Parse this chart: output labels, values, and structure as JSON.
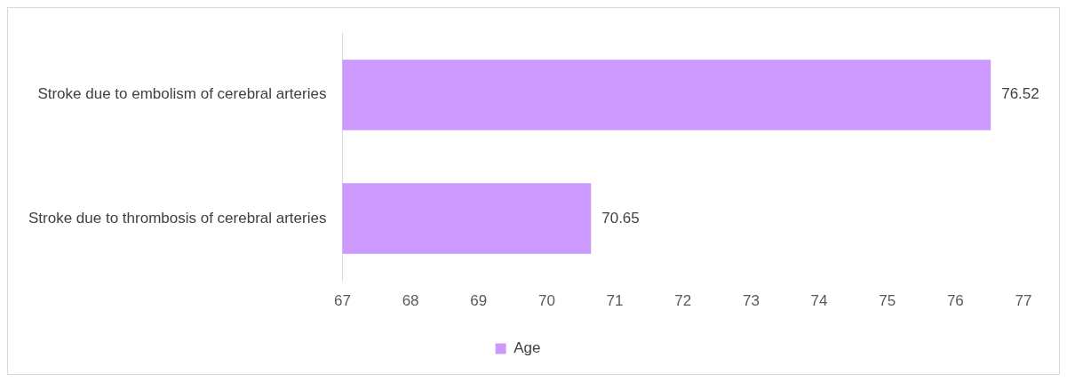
{
  "chart_data": {
    "type": "bar",
    "orientation": "horizontal",
    "categories": [
      "Stroke due to embolism of cerebral arteries",
      "Stroke due to thrombosis of cerebral arteries"
    ],
    "series": [
      {
        "name": "Age",
        "color": "#cc99ff",
        "values": [
          76.52,
          70.65
        ]
      }
    ],
    "xlim": [
      67,
      77
    ],
    "xticks": [
      67,
      68,
      69,
      70,
      71,
      72,
      73,
      74,
      75,
      76,
      77
    ],
    "data_labels": true,
    "legend": "bottom"
  }
}
